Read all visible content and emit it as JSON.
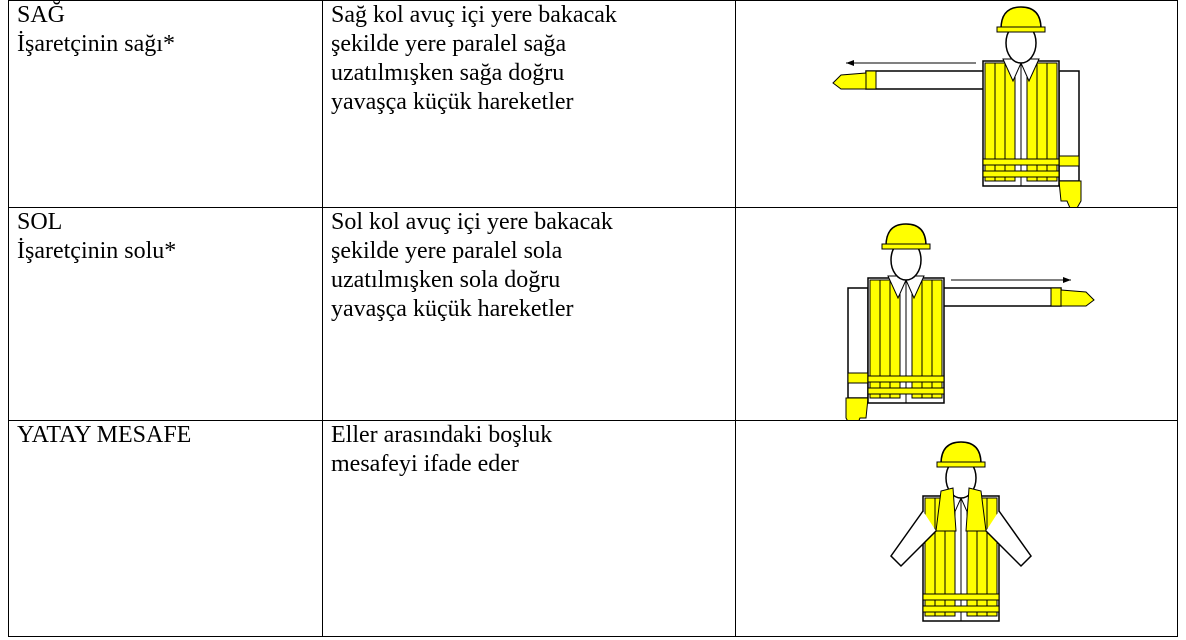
{
  "table": {
    "rows": [
      {
        "label": [
          "SAĞ",
          "İşaretçinin sağı*"
        ],
        "description": [
          "Sağ kol avuç içi yere bakacak",
          "şekilde yere paralel sağa",
          "uzatılmışken sağa doğru",
          "yavaşça küçük hareketler"
        ]
      },
      {
        "label": [
          "SOL",
          "İşaretçinin solu*"
        ],
        "description": [
          "Sol kol avuç içi yere bakacak",
          "şekilde yere paralel sola",
          "uzatılmışken sola doğru",
          "yavaşça küçük hareketler"
        ]
      },
      {
        "label": [
          "YATAY MESAFE"
        ],
        "description": [
          "Eller arasındaki boşluk",
          "mesafeyi ifade eder"
        ]
      }
    ]
  }
}
